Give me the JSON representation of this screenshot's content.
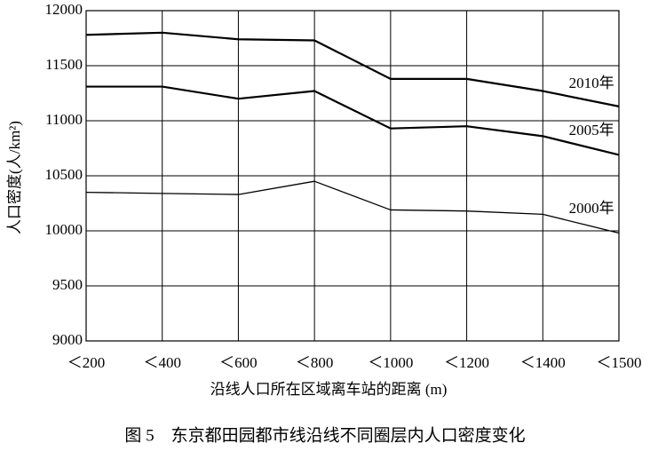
{
  "chart_data": {
    "type": "line",
    "caption": "图 5　东京都田园都市线沿线不同圈层内人口密度变化",
    "x_label": "沿线人口所在区域离车站的距离 (m)",
    "y_label": "人口密度(人/km²)",
    "categories": [
      "＜200",
      "＜400",
      "＜600",
      "＜800",
      "＜1000",
      "＜1200",
      "＜1400",
      "＜1500"
    ],
    "series": [
      {
        "name": "2010年",
        "color": "#000000",
        "values": [
          11780,
          11800,
          11740,
          11730,
          11380,
          11380,
          11270,
          11130
        ]
      },
      {
        "name": "2005年",
        "color": "#000000",
        "values": [
          11310,
          11310,
          11200,
          11270,
          10930,
          10950,
          10860,
          10690
        ]
      },
      {
        "name": "2000年",
        "color": "#000000",
        "values": [
          10350,
          10340,
          10330,
          10450,
          10190,
          10180,
          10150,
          9980
        ]
      }
    ],
    "ylim": [
      9000,
      12000
    ],
    "yticks": [
      9000,
      9500,
      10000,
      10500,
      11000,
      11500,
      12000
    ],
    "grid": true
  }
}
